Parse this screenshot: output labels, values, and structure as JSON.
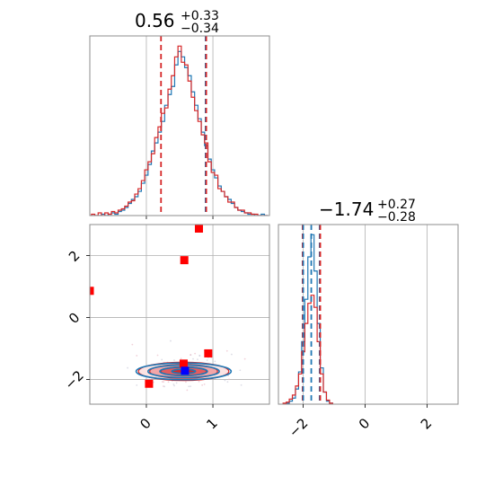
{
  "chart_data": [
    {
      "panel": "marginal-param-1",
      "type": "step-histogram",
      "title": {
        "median": "0.56",
        "plus": "+0.33",
        "minus": "−0.34"
      },
      "xlim": [
        -0.85,
        1.85
      ],
      "grid": true,
      "series": [
        {
          "name": "",
          "color": "#1f77b4",
          "bin_centers": [
            -0.8,
            -0.75,
            -0.7,
            -0.65,
            -0.6,
            -0.55,
            -0.5,
            -0.45,
            -0.4,
            -0.35,
            -0.3,
            -0.25,
            -0.2,
            -0.15,
            -0.1,
            -0.05,
            0.0,
            0.05,
            0.1,
            0.15,
            0.2,
            0.25,
            0.3,
            0.35,
            0.4,
            0.45,
            0.5,
            0.55,
            0.6,
            0.65,
            0.7,
            0.75,
            0.8,
            0.85,
            0.9,
            0.95,
            1.0,
            1.05,
            1.1,
            1.15,
            1.2,
            1.25,
            1.3,
            1.35,
            1.4,
            1.45,
            1.5,
            1.55,
            1.6,
            1.65,
            1.7,
            1.75,
            1.8
          ],
          "counts": [
            0,
            0,
            0,
            1,
            0,
            1,
            2,
            1,
            3,
            4,
            6,
            9,
            12,
            14,
            18,
            24,
            30,
            38,
            48,
            54,
            62,
            70,
            82,
            90,
            96,
            112,
            122,
            118,
            110,
            104,
            92,
            82,
            72,
            62,
            52,
            42,
            34,
            28,
            22,
            18,
            14,
            12,
            9,
            6,
            4,
            3,
            2,
            1,
            1,
            0,
            0,
            1,
            0
          ]
        },
        {
          "name": "",
          "color": "#d62728",
          "bin_centers": [
            -0.8,
            -0.75,
            -0.7,
            -0.65,
            -0.6,
            -0.55,
            -0.5,
            -0.45,
            -0.4,
            -0.35,
            -0.3,
            -0.25,
            -0.2,
            -0.15,
            -0.1,
            -0.05,
            0.0,
            0.05,
            0.1,
            0.15,
            0.2,
            0.25,
            0.3,
            0.35,
            0.4,
            0.45,
            0.5,
            0.55,
            0.6,
            0.65,
            0.7,
            0.75,
            0.8,
            0.85,
            0.9,
            0.95,
            1.0,
            1.05,
            1.1,
            1.15,
            1.2,
            1.25,
            1.3,
            1.35,
            1.4,
            1.45,
            1.5,
            1.55,
            1.6,
            1.65,
            1.7,
            1.75,
            1.8
          ],
          "counts": [
            1,
            0,
            2,
            0,
            2,
            1,
            3,
            2,
            4,
            5,
            7,
            10,
            11,
            16,
            20,
            26,
            34,
            40,
            46,
            58,
            66,
            76,
            80,
            94,
            104,
            118,
            126,
            114,
            112,
            100,
            88,
            78,
            70,
            60,
            54,
            40,
            32,
            30,
            20,
            18,
            14,
            10,
            10,
            6,
            4,
            4,
            2,
            2,
            1,
            1,
            0,
            0,
            0
          ]
        }
      ],
      "quantile_lines": [
        {
          "x": 0.22,
          "color": "#d62728"
        },
        {
          "x": 0.89,
          "color": "#1f77b4"
        },
        {
          "x": 0.9,
          "color": "#d62728"
        }
      ]
    },
    {
      "panel": "joint-param-1-param-2",
      "type": "contour-scatter",
      "xlim": [
        -0.85,
        1.85
      ],
      "ylim": [
        -2.8,
        3.0
      ],
      "xticks": [
        0,
        1
      ],
      "yticks": [
        -2,
        0,
        2
      ],
      "grid": true,
      "series": [
        {
          "name": "",
          "color": "#1f77b4",
          "center": [
            0.56,
            -1.74
          ],
          "sigma": [
            0.34,
            0.27
          ]
        },
        {
          "name": "",
          "color": "#d62728",
          "center": [
            0.56,
            -1.74
          ],
          "sigma": [
            0.34,
            0.27
          ]
        }
      ],
      "red_points": [
        {
          "x": 0.79,
          "y": 2.87
        },
        {
          "x": 0.57,
          "y": 1.85
        },
        {
          "x": -0.85,
          "y": 0.86
        },
        {
          "x": 0.93,
          "y": -1.16
        },
        {
          "x": 0.56,
          "y": -1.49
        },
        {
          "x": 0.04,
          "y": -2.14
        }
      ],
      "blue_points": [
        {
          "x": 0.58,
          "y": -1.72
        }
      ]
    },
    {
      "panel": "marginal-param-2",
      "type": "step-histogram",
      "title": {
        "median": "−1.74",
        "plus": "+0.27",
        "minus": "−0.28"
      },
      "xlim": [
        -2.8,
        3.0
      ],
      "xticks": [
        -2,
        0,
        2
      ],
      "grid": true,
      "series": [
        {
          "name": "",
          "color": "#1f77b4",
          "bin_centers": [
            -2.6,
            -2.5,
            -2.4,
            -2.3,
            -2.2,
            -2.1,
            -2.0,
            -1.9,
            -1.8,
            -1.7,
            -1.6,
            -1.5,
            -1.4,
            -1.3,
            -1.2,
            -1.1
          ],
          "counts": [
            0,
            1,
            3,
            6,
            15,
            32,
            62,
            104,
            146,
            168,
            132,
            80,
            36,
            12,
            3,
            1
          ]
        },
        {
          "name": "",
          "color": "#d62728",
          "bin_centers": [
            -2.6,
            -2.5,
            -2.4,
            -2.3,
            -2.2,
            -2.1,
            -2.0,
            -1.9,
            -1.8,
            -1.7,
            -1.6,
            -1.5,
            -1.4,
            -1.3,
            -1.2,
            -1.1
          ],
          "counts": [
            1,
            2,
            5,
            9,
            18,
            30,
            52,
            80,
            100,
            108,
            96,
            62,
            30,
            12,
            4,
            1
          ]
        }
      ],
      "quantile_lines": [
        {
          "x": -2.02,
          "color": "#d62728"
        },
        {
          "x": -2.0,
          "color": "#1f77b4"
        },
        {
          "x": -1.74,
          "color": "#1f77b4"
        },
        {
          "x": -1.47,
          "color": "#1f77b4"
        },
        {
          "x": -1.45,
          "color": "#d62728"
        }
      ]
    }
  ]
}
